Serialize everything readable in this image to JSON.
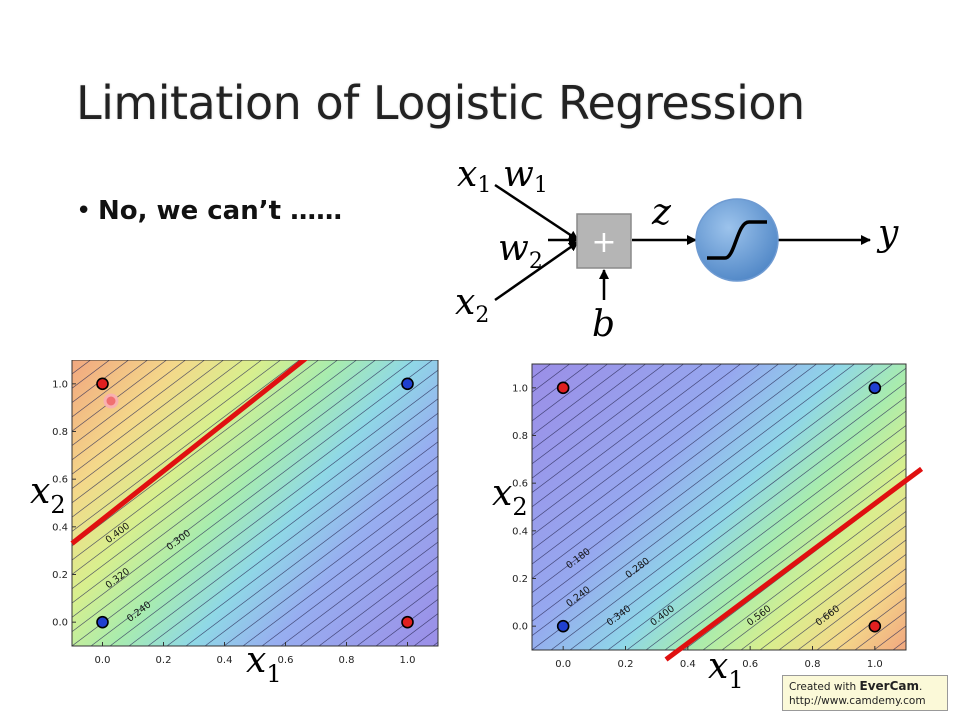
{
  "slide": {
    "title": "Limitation of Logistic Regression",
    "bullet": "No, we can’t ……"
  },
  "neuron": {
    "x1": "x",
    "x1_sub": "1",
    "w1": "w",
    "w1_sub": "1",
    "w2": "w",
    "w2_sub": "2",
    "x2": "x",
    "x2_sub": "2",
    "sum": "+",
    "z": "z",
    "b": "b",
    "y": "y"
  },
  "chart_data": [
    {
      "type": "contour",
      "xlabel": "x",
      "xlabel_sub": "1",
      "ylabel": "x",
      "ylabel_sub": "2",
      "xlim": [
        -0.1,
        1.1
      ],
      "ylim": [
        -0.1,
        1.1
      ],
      "x_ticks": [
        "0.0",
        "0.2",
        "0.4",
        "0.6",
        "0.8",
        "1.0"
      ],
      "y_ticks": [
        "0.0",
        "0.2",
        "0.4",
        "0.6",
        "0.8",
        "1.0"
      ],
      "points": [
        {
          "x": 0,
          "y": 1,
          "color": "#e02020"
        },
        {
          "x": 1,
          "y": 1,
          "color": "#2040d0"
        },
        {
          "x": 0,
          "y": 0,
          "color": "#2040d0"
        },
        {
          "x": 1,
          "y": 0,
          "color": "#e02020"
        }
      ],
      "contour_labels": [
        {
          "text": "0.400",
          "x": 0.0,
          "y": 0.33
        },
        {
          "text": "0.300",
          "x": 0.2,
          "y": 0.3
        },
        {
          "text": "0.320",
          "x": 0.0,
          "y": 0.14
        },
        {
          "text": "0.240",
          "x": 0.07,
          "y": 0.0
        }
      ],
      "boundary": [
        [
          -0.1,
          0.33
        ],
        [
          0.67,
          1.11
        ]
      ]
    },
    {
      "type": "contour",
      "xlabel": "x",
      "xlabel_sub": "1",
      "ylabel": "x",
      "ylabel_sub": "2",
      "xlim": [
        -0.1,
        1.1
      ],
      "ylim": [
        -0.1,
        1.1
      ],
      "x_ticks": [
        "0.0",
        "0.2",
        "0.4",
        "0.6",
        "0.8",
        "1.0"
      ],
      "y_ticks": [
        "0.0",
        "0.2",
        "0.4",
        "0.6",
        "0.8",
        "1.0"
      ],
      "points": [
        {
          "x": 0,
          "y": 1,
          "color": "#e02020"
        },
        {
          "x": 1,
          "y": 1,
          "color": "#2040d0"
        },
        {
          "x": 0,
          "y": 0,
          "color": "#2040d0"
        },
        {
          "x": 1,
          "y": 0,
          "color": "#e02020"
        }
      ],
      "contour_labels": [
        {
          "text": "0.180",
          "x": 0.0,
          "y": 0.24
        },
        {
          "text": "0.280",
          "x": 0.19,
          "y": 0.2
        },
        {
          "text": "0.240",
          "x": 0.0,
          "y": 0.08
        },
        {
          "text": "0.340",
          "x": 0.13,
          "y": 0.0
        },
        {
          "text": "0.400",
          "x": 0.27,
          "y": 0.0
        },
        {
          "text": "0.560",
          "x": 0.58,
          "y": 0.0
        },
        {
          "text": "0.660",
          "x": 0.8,
          "y": 0.0
        }
      ],
      "boundary": [
        [
          0.33,
          -0.14
        ],
        [
          1.15,
          0.66
        ]
      ]
    }
  ],
  "watermark": {
    "line1_prefix": "Created with",
    "brand": "EverCam",
    "line1_suffix": ".",
    "url": "http://www.camdemy.com"
  }
}
